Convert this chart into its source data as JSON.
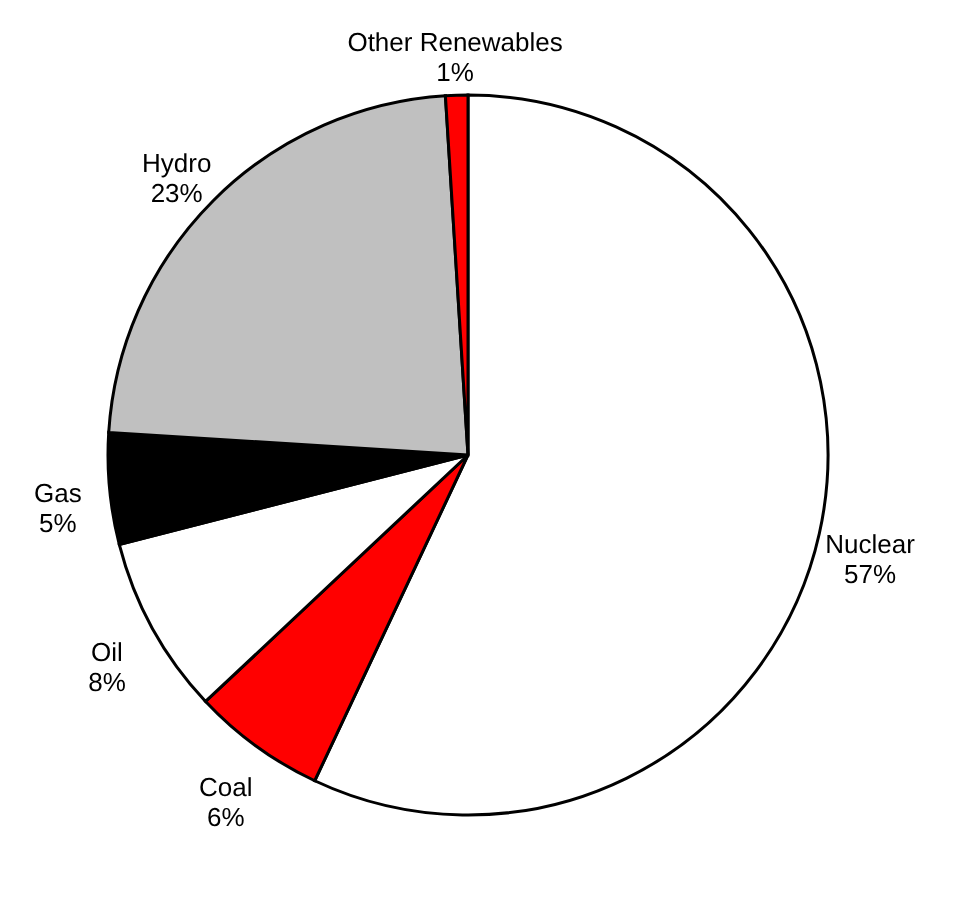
{
  "chart_data": {
    "type": "pie",
    "categories": [
      "Nuclear",
      "Coal",
      "Oil",
      "Gas",
      "Hydro",
      "Other Renewables"
    ],
    "values": [
      57,
      6,
      8,
      5,
      23,
      1
    ],
    "value_labels": [
      "57%",
      "6%",
      "8%",
      "5%",
      "23%",
      "1%"
    ],
    "colors": [
      "#ffffff",
      "#ff0000",
      "#ffffff",
      "#000000",
      "#c0c0c0",
      "#ff0000"
    ]
  }
}
